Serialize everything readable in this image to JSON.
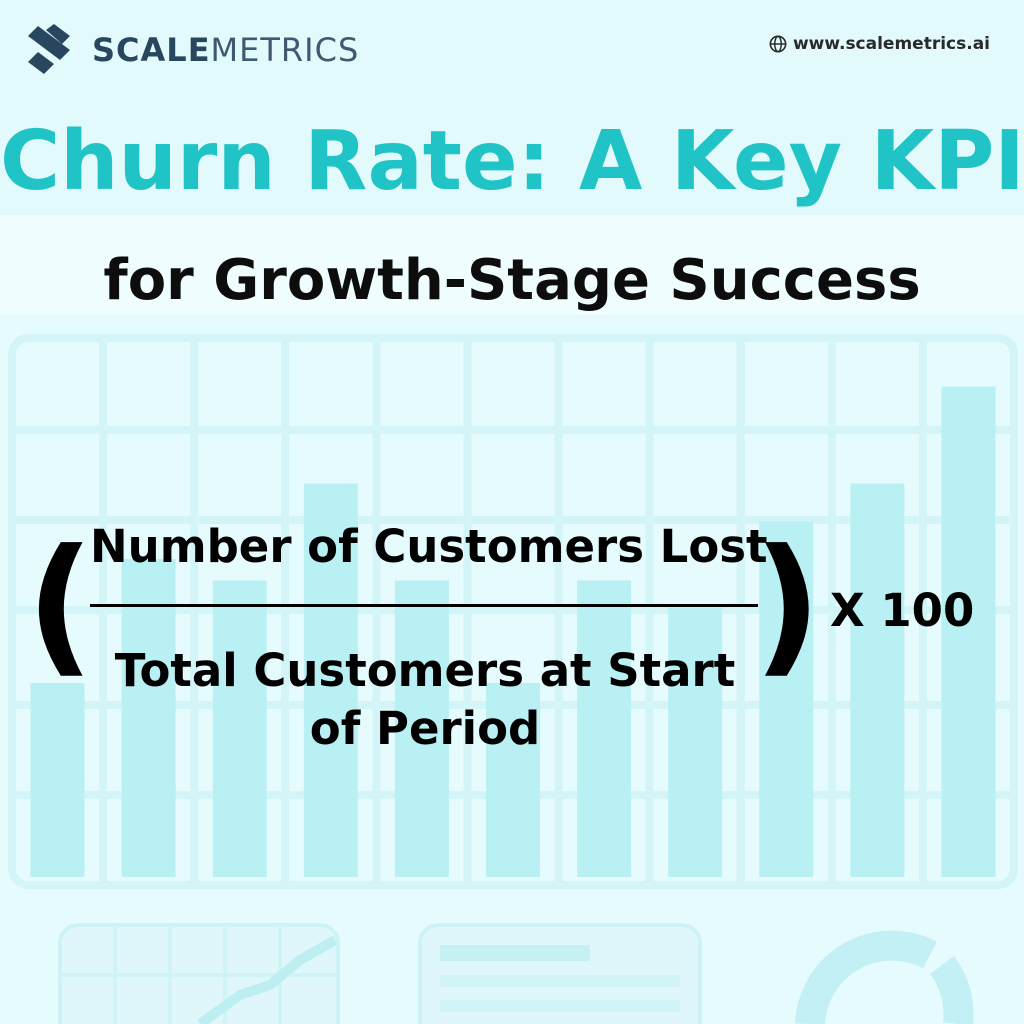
{
  "brand": {
    "name_bold": "SCALE",
    "name_light": "METRICS"
  },
  "website": {
    "icon": "globe-icon",
    "url": "www.scalemetrics.ai"
  },
  "title": "Churn Rate: A Key KPI",
  "subtitle": "for Growth-Stage Success",
  "formula": {
    "open_paren": "(",
    "numerator": "Number of Customers Lost",
    "denominator": "Total Customers at Start of Period",
    "close_paren": ")",
    "multiplier": "X 100"
  },
  "colors": {
    "accent": "#21c4c6",
    "brand_dark": "#28465e",
    "background": "#e6fbfd",
    "decor_bar": "#b9f0f3",
    "grid": "#d3f5f7"
  },
  "decor_bars": [
    0.36,
    0.59,
    0.55,
    0.73,
    0.55,
    0.36,
    0.55,
    0.5,
    0.66,
    0.73,
    0.91
  ]
}
